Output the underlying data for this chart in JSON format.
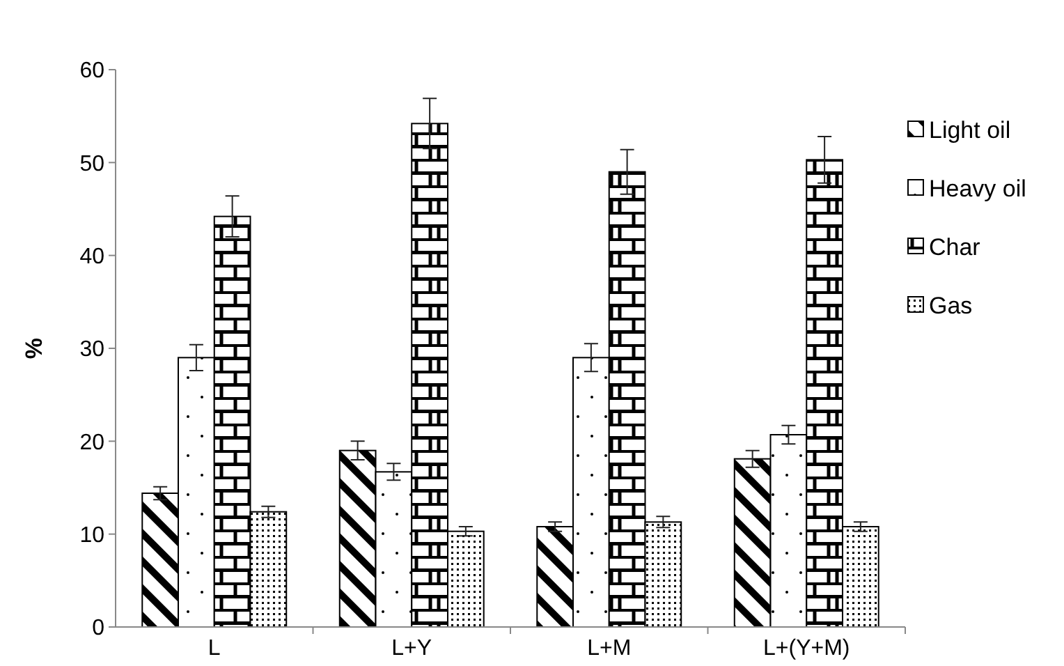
{
  "chart_data": {
    "type": "bar",
    "ylabel": "%",
    "categories": [
      "L",
      "L+Y",
      "L+M",
      "L+(Y+M)"
    ],
    "series": [
      {
        "name": "Light oil",
        "color": "#000000",
        "values": [
          14.4,
          19,
          10.8,
          18.1
        ],
        "errors": [
          0.7,
          1,
          0.5,
          0.9
        ]
      },
      {
        "name": "Heavy oil",
        "color": "#000000",
        "values": [
          29,
          16.7,
          29,
          20.7
        ],
        "errors": [
          1.4,
          0.9,
          1.5,
          1
        ]
      },
      {
        "name": "Char",
        "color": "#000000",
        "values": [
          44.2,
          54.2,
          49,
          50.3
        ],
        "errors": [
          2.2,
          2.7,
          2.4,
          2.5
        ]
      },
      {
        "name": "Gas",
        "color": "#000000",
        "values": [
          12.4,
          10.3,
          11.3,
          10.8
        ],
        "errors": [
          0.6,
          0.5,
          0.6,
          0.5
        ]
      }
    ],
    "ylim": [
      0,
      60
    ],
    "yticks": [
      0,
      10,
      20,
      30,
      40,
      50,
      60
    ],
    "legend": "right"
  }
}
